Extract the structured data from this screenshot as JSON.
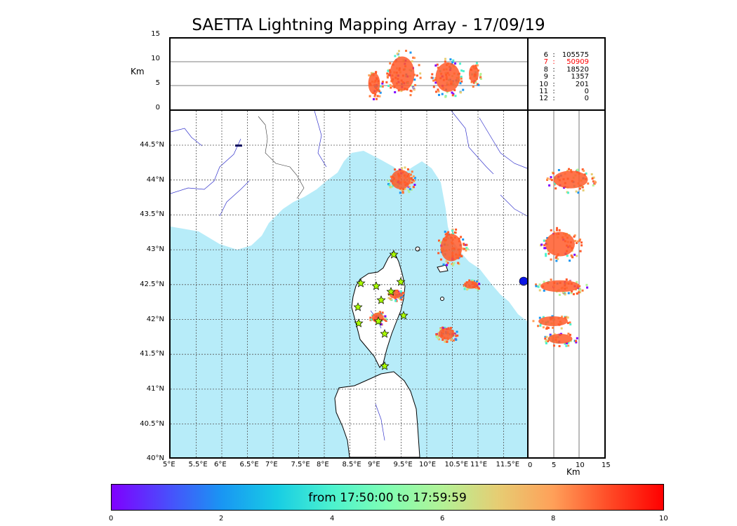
{
  "title": "SAETTA Lightning Mapping Array - 17/09/19",
  "altitude_panel": {
    "unit": "Km",
    "ticks": [
      "15",
      "10",
      "5",
      "0"
    ]
  },
  "map": {
    "lat_ticks": [
      "44.5°N",
      "44°N",
      "43.5°N",
      "43°N",
      "42.5°N",
      "42°N",
      "41.5°N",
      "41°N",
      "40.5°N",
      "40°N"
    ],
    "lon_ticks": [
      "5°E",
      "5.5°E",
      "6°E",
      "6.5°E",
      "7°E",
      "7.5°E",
      "8°E",
      "8.5°E",
      "9°E",
      "9.5°E",
      "10°E",
      "10.5°E",
      "11°E",
      "11.5°E"
    ],
    "colors": {
      "sea": "#b7ecf9",
      "land": "#ffffff",
      "rivers": "#3333cc",
      "grid": "#555555",
      "stations": "#aaff00",
      "lightning": "#ff5a2a"
    }
  },
  "side_panel": {
    "unit": "Km",
    "ticks": [
      "0",
      "5",
      "10",
      "15"
    ]
  },
  "counts": [
    {
      "k": "6",
      "v": "105575",
      "red": false
    },
    {
      "k": "7",
      "v": "50909",
      "red": true
    },
    {
      "k": "8",
      "v": "18520",
      "red": false
    },
    {
      "k": "9",
      "v": "1357",
      "red": false
    },
    {
      "k": "10",
      "v": "201",
      "red": false
    },
    {
      "k": "11",
      "v": "0",
      "red": false
    },
    {
      "k": "12",
      "v": "0",
      "red": false
    }
  ],
  "colorbar": {
    "label": "from 17:50:00 to 17:59:59",
    "ticks": [
      "0",
      "2",
      "4",
      "6",
      "8",
      "10"
    ]
  }
}
